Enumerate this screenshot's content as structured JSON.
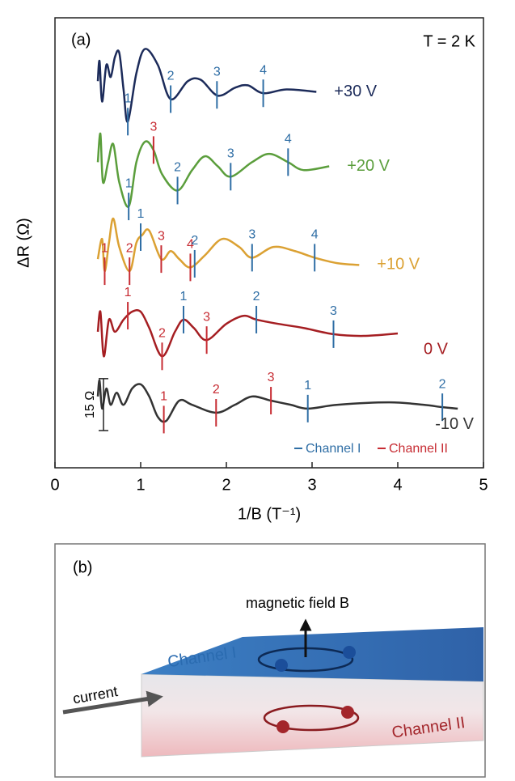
{
  "chart_data": {
    "type": "line",
    "panel_label": "(a)",
    "annotation": "T = 2 K",
    "x_label": "1/B (T⁻¹)",
    "y_label": "ΔR (Ω)",
    "xlim": [
      0,
      5
    ],
    "xticks": [
      0,
      1,
      2,
      3,
      4,
      5
    ],
    "ylim": [
      0,
      130
    ],
    "scale_bar": {
      "value": 15,
      "label": "15 Ω"
    },
    "legend": [
      {
        "name": "Channel I",
        "color": "#2f6ea5"
      },
      {
        "name": "Channel II",
        "color": "#c72c33"
      }
    ],
    "series": [
      {
        "name": "+30 V",
        "color": "#1c2b5a",
        "x": [
          0.5,
          0.52,
          0.55,
          0.6,
          0.65,
          0.7,
          0.75,
          0.8,
          0.85,
          0.95,
          1.05,
          1.2,
          1.35,
          1.55,
          1.7,
          1.9,
          2.1,
          2.25,
          2.43,
          2.7,
          3.05
        ],
        "values": [
          111.7,
          117.5,
          105.8,
          116.4,
          112.9,
          118.7,
          119.9,
          109.3,
          100,
          114,
          121,
          116.4,
          106.5,
          111.7,
          112.1,
          107.5,
          109.8,
          110.5,
          108.2,
          109.3,
          108.6
        ],
        "markers": [
          {
            "x": 0.85,
            "label": "1",
            "color": "#2f6ea5"
          },
          {
            "x": 1.35,
            "label": "2",
            "color": "#2f6ea5"
          },
          {
            "x": 1.89,
            "label": "3",
            "color": "#2f6ea5"
          },
          {
            "x": 2.43,
            "label": "4",
            "color": "#2f6ea5"
          }
        ]
      },
      {
        "name": "+20 V",
        "color": "#5b9e3c",
        "x": [
          0.5,
          0.53,
          0.56,
          0.62,
          0.68,
          0.75,
          0.86,
          0.95,
          1.05,
          1.15,
          1.25,
          1.43,
          1.6,
          1.75,
          1.9,
          2.05,
          2.3,
          2.5,
          2.72,
          2.9,
          3.2
        ],
        "values": [
          88.3,
          96.5,
          82.5,
          88.3,
          93.5,
          82.5,
          75.5,
          88.3,
          94.2,
          91.8,
          84.8,
          80.1,
          86,
          90,
          87.1,
          84.1,
          88.3,
          90.7,
          88.3,
          86,
          87.1
        ],
        "markers": [
          {
            "x": 0.86,
            "label": "1",
            "color": "#2f6ea5"
          },
          {
            "x": 1.15,
            "label": "3",
            "color": "#c72c33"
          },
          {
            "x": 1.43,
            "label": "2",
            "color": "#2f6ea5"
          },
          {
            "x": 2.05,
            "label": "3",
            "color": "#2f6ea5"
          },
          {
            "x": 2.72,
            "label": "4",
            "color": "#2f6ea5"
          }
        ]
      },
      {
        "name": "+10 V",
        "color": "#dba133",
        "x": [
          0.5,
          0.55,
          0.58,
          0.63,
          0.68,
          0.75,
          0.87,
          0.95,
          1.02,
          1.1,
          1.24,
          1.35,
          1.45,
          1.58,
          1.75,
          1.95,
          2.15,
          2.3,
          2.55,
          2.8,
          3.03,
          3.3,
          3.55
        ],
        "values": [
          60.3,
          66.1,
          56.8,
          65,
          72,
          63.8,
          56.8,
          65,
          67.3,
          68.5,
          60.3,
          62.6,
          60.3,
          57.9,
          61.4,
          66.1,
          63.8,
          60.7,
          63.8,
          62.6,
          60.7,
          59.1,
          58.6
        ],
        "markers": [
          {
            "x": 0.58,
            "label": "1",
            "color": "#c72c33"
          },
          {
            "x": 0.87,
            "label": "2",
            "color": "#c72c33"
          },
          {
            "x": 1.0,
            "label": "1",
            "color": "#2f6ea5"
          },
          {
            "x": 1.24,
            "label": "3",
            "color": "#c72c33"
          },
          {
            "x": 1.58,
            "label": "4",
            "color": "#c72c33"
          },
          {
            "x": 1.63,
            "label": "2",
            "color": "#2f6ea5"
          },
          {
            "x": 2.3,
            "label": "3",
            "color": "#2f6ea5"
          },
          {
            "x": 3.03,
            "label": "4",
            "color": "#2f6ea5"
          }
        ]
      },
      {
        "name": "0 V",
        "color": "#a51e22",
        "x": [
          0.5,
          0.53,
          0.57,
          0.63,
          0.7,
          0.8,
          0.9,
          1.0,
          1.1,
          1.25,
          1.4,
          1.5,
          1.62,
          1.77,
          2.0,
          2.2,
          2.35,
          2.6,
          2.9,
          3.25,
          3.6,
          4.0
        ],
        "values": [
          39.3,
          45.1,
          32.2,
          42.8,
          39.3,
          42.8,
          45.1,
          45.1,
          40.4,
          32.2,
          39.3,
          42.8,
          40.4,
          36.9,
          41.6,
          43.9,
          42.8,
          41.6,
          40.4,
          38.6,
          38.1,
          38.8
        ],
        "markers": [
          {
            "x": 0.85,
            "label": "1",
            "color": "#c72c33"
          },
          {
            "x": 1.25,
            "label": "2",
            "color": "#c72c33"
          },
          {
            "x": 1.5,
            "label": "1",
            "color": "#2f6ea5"
          },
          {
            "x": 1.77,
            "label": "3",
            "color": "#c72c33"
          },
          {
            "x": 2.35,
            "label": "2",
            "color": "#2f6ea5"
          },
          {
            "x": 3.25,
            "label": "3",
            "color": "#2f6ea5"
          }
        ]
      },
      {
        "name": "-10 V",
        "color": "#333333",
        "x": [
          0.5,
          0.52,
          0.55,
          0.6,
          0.65,
          0.72,
          0.8,
          0.9,
          1.0,
          1.1,
          1.2,
          1.3,
          1.45,
          1.6,
          1.88,
          2.1,
          2.3,
          2.52,
          2.75,
          2.95,
          3.3,
          3.9,
          4.3,
          4.52,
          4.7
        ],
        "values": [
          20.6,
          25.2,
          17.1,
          22.9,
          18.2,
          21.7,
          18.2,
          22.9,
          24.1,
          20.6,
          14.7,
          13.6,
          19.4,
          18.2,
          15.9,
          18.2,
          20.6,
          19.4,
          18.2,
          17.1,
          18.2,
          18.9,
          18.2,
          17.5,
          17.1
        ],
        "markers": [
          {
            "x": 1.27,
            "label": "1",
            "color": "#c72c33"
          },
          {
            "x": 1.88,
            "label": "2",
            "color": "#c72c33"
          },
          {
            "x": 2.52,
            "label": "3",
            "color": "#c72c33"
          },
          {
            "x": 2.95,
            "label": "1",
            "color": "#2f6ea5"
          },
          {
            "x": 4.52,
            "label": "2",
            "color": "#2f6ea5"
          }
        ]
      }
    ]
  },
  "diagram": {
    "label": "(b)",
    "field": "magnetic field B",
    "top_channel": "Channel I",
    "current": "current",
    "bottom_channel": "Channel II"
  }
}
